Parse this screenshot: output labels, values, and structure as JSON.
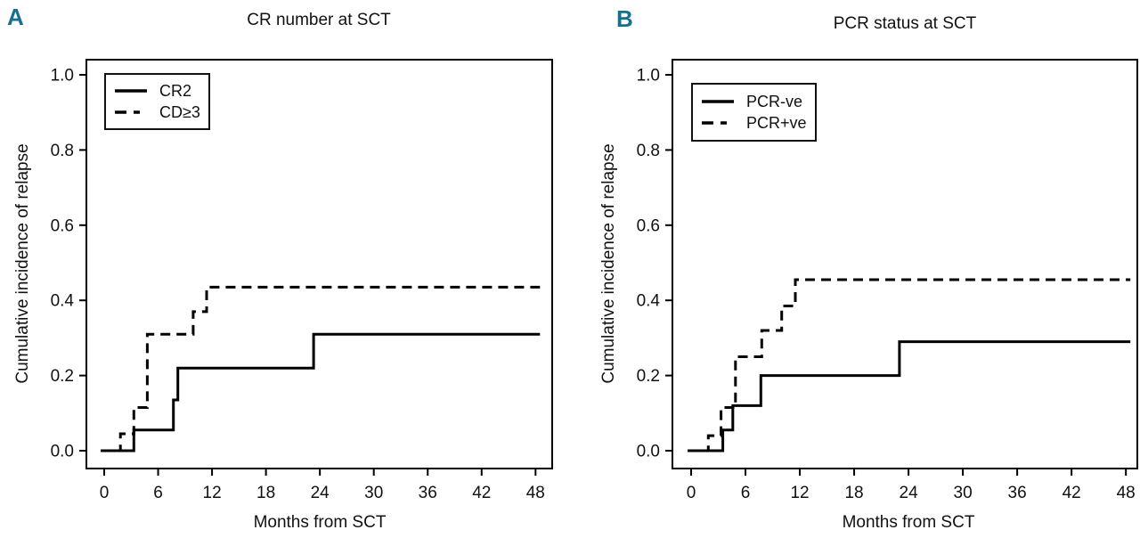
{
  "figure": {
    "accent_color": "#19708e",
    "line_color": "#000000"
  },
  "chart_data": [
    {
      "type": "step",
      "panel_label": "A",
      "title": "CR number at SCT",
      "xlabel": "Months from SCT",
      "ylabel": "Cumulative incidence of relapse",
      "xlim": [
        0,
        48
      ],
      "ylim": [
        0.0,
        1.0
      ],
      "xticks": [
        0,
        6,
        12,
        18,
        24,
        30,
        36,
        42,
        48
      ],
      "yticks": [
        "0.0",
        "0.2",
        "0.4",
        "0.6",
        "0.8",
        "1.0"
      ],
      "grid": false,
      "legend_position": "top-left",
      "series": [
        {
          "name": "CR2",
          "line": "solid",
          "start": [
            0,
            0.0
          ],
          "steps": [
            [
              3.3,
              0.055
            ],
            [
              7.7,
              0.135
            ],
            [
              8.2,
              0.22
            ],
            [
              23.3,
              0.31
            ]
          ],
          "end_x": 48,
          "final_value": 0.31
        },
        {
          "name": "CD≥3",
          "line": "dashed",
          "start": [
            0,
            0.0
          ],
          "steps": [
            [
              1.8,
              0.045
            ],
            [
              3.3,
              0.115
            ],
            [
              4.8,
              0.31
            ],
            [
              9.9,
              0.37
            ],
            [
              11.4,
              0.435
            ]
          ],
          "end_x": 48,
          "final_value": 0.435
        }
      ]
    },
    {
      "type": "step",
      "panel_label": "B",
      "title": "PCR status at SCT",
      "xlabel": "Months from SCT",
      "ylabel": "Cumulative incidence of relapse",
      "xlim": [
        0,
        48
      ],
      "ylim": [
        0.0,
        1.0
      ],
      "xticks": [
        0,
        6,
        12,
        18,
        24,
        30,
        36,
        42,
        48
      ],
      "yticks": [
        "0.0",
        "0.2",
        "0.4",
        "0.6",
        "0.8",
        "1.0"
      ],
      "grid": false,
      "legend_position": "top-left",
      "series": [
        {
          "name": "PCR-ve",
          "line": "solid",
          "start": [
            0,
            0.0
          ],
          "steps": [
            [
              3.5,
              0.055
            ],
            [
              4.6,
              0.12
            ],
            [
              7.7,
              0.2
            ],
            [
              23.0,
              0.29
            ]
          ],
          "end_x": 48,
          "final_value": 0.29
        },
        {
          "name": "PCR+ve",
          "line": "dashed",
          "start": [
            0,
            0.0
          ],
          "steps": [
            [
              1.9,
              0.04
            ],
            [
              3.3,
              0.115
            ],
            [
              4.9,
              0.25
            ],
            [
              7.8,
              0.32
            ],
            [
              10.0,
              0.385
            ],
            [
              11.5,
              0.455
            ]
          ],
          "end_x": 48,
          "final_value": 0.455
        }
      ]
    }
  ]
}
